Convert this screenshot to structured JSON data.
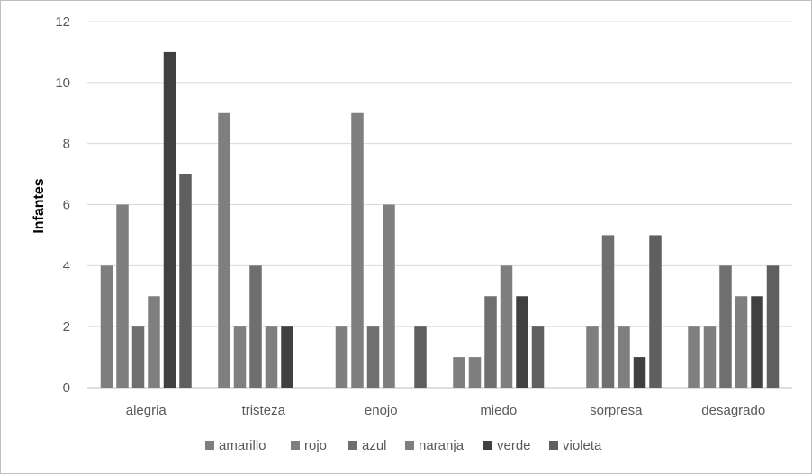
{
  "chart_data": {
    "type": "bar",
    "title": "",
    "xlabel": "",
    "ylabel": "Infantes",
    "ylim": [
      0,
      12
    ],
    "yticks": [
      0,
      2,
      4,
      6,
      8,
      10,
      12
    ],
    "grid": true,
    "legend_position": "bottom",
    "categories": [
      "alegria",
      "tristeza",
      "enojo",
      "miedo",
      "sorpresa",
      "desagrado"
    ],
    "series": [
      {
        "name": "amarillo",
        "color": "#7f7f7f",
        "values": [
          4,
          9,
          2,
          1,
          0,
          2
        ]
      },
      {
        "name": "rojo",
        "color": "#7f7f7f",
        "values": [
          6,
          2,
          9,
          1,
          2,
          2
        ]
      },
      {
        "name": "azul",
        "color": "#6f6f6f",
        "values": [
          2,
          4,
          2,
          3,
          5,
          4
        ]
      },
      {
        "name": "naranja",
        "color": "#7f7f7f",
        "values": [
          3,
          2,
          6,
          4,
          2,
          3
        ]
      },
      {
        "name": "verde",
        "color": "#404040",
        "values": [
          11,
          2,
          0,
          3,
          1,
          3
        ]
      },
      {
        "name": "violeta",
        "color": "#5f5f5f",
        "values": [
          7,
          0,
          2,
          2,
          5,
          4
        ]
      }
    ]
  }
}
